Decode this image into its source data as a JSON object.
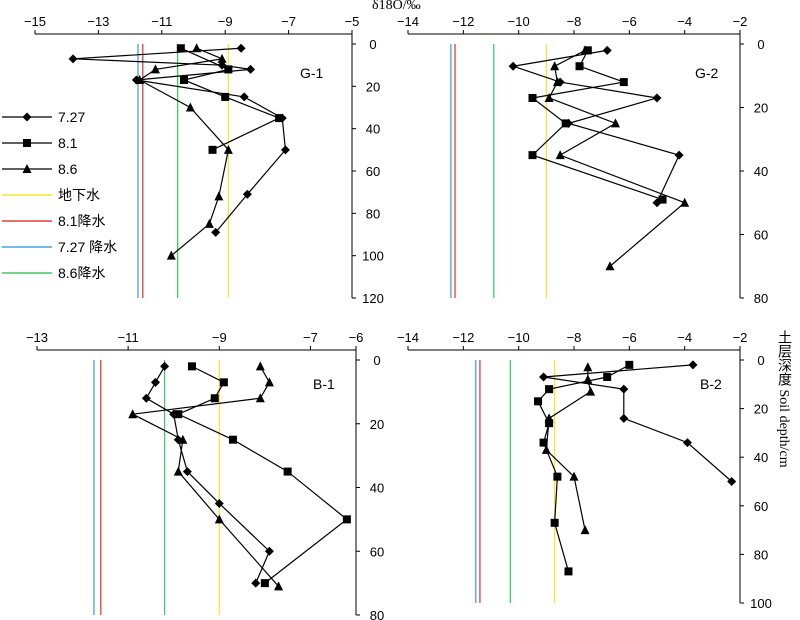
{
  "figure": {
    "top_axis_title": "δ18O/‰",
    "right_axis_title": "土层深度 Soil depth/cm"
  },
  "legend": [
    {
      "label": "7.27",
      "kind": "series",
      "marker": "diamond",
      "color": "#000000"
    },
    {
      "label": "8.1",
      "kind": "series",
      "marker": "square",
      "color": "#000000"
    },
    {
      "label": "8.6",
      "kind": "series",
      "marker": "triangle",
      "color": "#000000"
    },
    {
      "label": "地下水",
      "kind": "line",
      "color": "#f5e63a"
    },
    {
      "label": "8.1降水",
      "kind": "line",
      "color": "#e0403a"
    },
    {
      "label": "7.27 降水",
      "kind": "line",
      "color": "#4aa3e0"
    },
    {
      "label": "8.6降水",
      "kind": "line",
      "color": "#43c96b"
    }
  ],
  "chart_data": [
    {
      "type": "line",
      "panel": "G-1",
      "x_ticks": [
        -15,
        -13,
        -11,
        -9,
        -7,
        -5
      ],
      "y_ticks": [
        0,
        20,
        40,
        60,
        80,
        100,
        120
      ],
      "xlim": [
        -15,
        -5
      ],
      "ylim": [
        0,
        120
      ],
      "reference_lines": {
        "groundwater": -8.9,
        "rain_8_1": -11.6,
        "rain_7_27": -11.75,
        "rain_8_6": -10.5
      },
      "series": [
        {
          "name": "7.27",
          "marker": "diamond",
          "points": [
            [
              -8.5,
              2
            ],
            [
              -13.8,
              7
            ],
            [
              -9.1,
              10
            ],
            [
              -8.2,
              12
            ],
            [
              -11.8,
              17
            ],
            [
              -8.4,
              25
            ],
            [
              -7.2,
              35
            ],
            [
              -7.1,
              50
            ],
            [
              -8.3,
              71
            ],
            [
              -9.3,
              89
            ]
          ]
        },
        {
          "name": "8.1",
          "marker": "square",
          "points": [
            [
              -10.4,
              2
            ],
            [
              -8.9,
              12
            ],
            [
              -10.3,
              17
            ],
            [
              -9.0,
              25
            ],
            [
              -7.3,
              35
            ],
            [
              -9.4,
              50
            ]
          ]
        },
        {
          "name": "8.6",
          "marker": "triangle",
          "points": [
            [
              -9.9,
              2
            ],
            [
              -9.1,
              7
            ],
            [
              -11.2,
              12
            ],
            [
              -11.7,
              17
            ],
            [
              -10.1,
              30
            ],
            [
              -8.9,
              50
            ],
            [
              -9.2,
              72
            ],
            [
              -9.5,
              85
            ],
            [
              -10.7,
              100
            ]
          ]
        }
      ]
    },
    {
      "type": "line",
      "panel": "G-2",
      "x_ticks": [
        -14,
        -12,
        -10,
        -8,
        -6,
        -4,
        -2
      ],
      "y_ticks": [
        0,
        20,
        40,
        60,
        80
      ],
      "xlim": [
        -14,
        -2
      ],
      "ylim": [
        0,
        80
      ],
      "reference_lines": {
        "groundwater": -9.0,
        "rain_8_1": -12.3,
        "rain_7_27": -12.45,
        "rain_8_6": -10.9
      },
      "series": [
        {
          "name": "7.27",
          "marker": "diamond",
          "points": [
            [
              -6.8,
              2
            ],
            [
              -10.2,
              7
            ],
            [
              -8.5,
              12
            ],
            [
              -5.0,
              17
            ],
            [
              -8.2,
              25
            ],
            [
              -4.2,
              35
            ],
            [
              -5.0,
              50
            ]
          ]
        },
        {
          "name": "8.1",
          "marker": "square",
          "points": [
            [
              -7.5,
              2
            ],
            [
              -7.8,
              7
            ],
            [
              -6.2,
              12
            ],
            [
              -9.5,
              17
            ],
            [
              -8.3,
              25
            ],
            [
              -9.5,
              35
            ],
            [
              -4.8,
              49
            ]
          ]
        },
        {
          "name": "8.6",
          "marker": "triangle",
          "points": [
            [
              -7.6,
              2
            ],
            [
              -8.7,
              7
            ],
            [
              -8.6,
              12
            ],
            [
              -8.9,
              17
            ],
            [
              -6.5,
              25
            ],
            [
              -8.5,
              35
            ],
            [
              -4.0,
              50
            ],
            [
              -6.7,
              70
            ]
          ]
        }
      ]
    },
    {
      "type": "line",
      "panel": "B-1",
      "x_ticks": [
        -13,
        -11,
        -9,
        -7,
        -6
      ],
      "y_ticks": [
        0,
        20,
        40,
        60,
        80
      ],
      "xlim": [
        -13,
        -6
      ],
      "ylim": [
        0,
        80
      ],
      "reference_lines": {
        "groundwater": -9.0,
        "rain_8_1": -11.6,
        "rain_7_27": -11.75,
        "rain_8_6": -10.2
      },
      "series": [
        {
          "name": "7.27",
          "marker": "diamond",
          "points": [
            [
              -10.2,
              2
            ],
            [
              -10.4,
              7
            ],
            [
              -10.6,
              12
            ],
            [
              -10.0,
              17
            ],
            [
              -9.9,
              25
            ],
            [
              -9.7,
              35
            ],
            [
              -9.0,
              45
            ],
            [
              -7.9,
              60
            ],
            [
              -8.2,
              70
            ]
          ]
        },
        {
          "name": "8.1",
          "marker": "square",
          "points": [
            [
              -9.6,
              2
            ],
            [
              -8.9,
              7
            ],
            [
              -9.1,
              12
            ],
            [
              -9.9,
              17
            ],
            [
              -8.7,
              25
            ],
            [
              -7.5,
              35
            ],
            [
              -6.2,
              50
            ],
            [
              -8.0,
              70
            ]
          ]
        },
        {
          "name": "8.6",
          "marker": "triangle",
          "points": [
            [
              -8.1,
              2
            ],
            [
              -7.9,
              7
            ],
            [
              -8.1,
              12
            ],
            [
              -10.9,
              17
            ],
            [
              -9.8,
              25
            ],
            [
              -9.9,
              35
            ],
            [
              -9.0,
              50
            ],
            [
              -7.7,
              71
            ]
          ]
        }
      ]
    },
    {
      "type": "line",
      "panel": "B-2",
      "x_ticks": [
        -14,
        -12,
        -10,
        -8,
        -6,
        -4,
        -2
      ],
      "y_ticks": [
        0,
        20,
        40,
        60,
        80,
        100
      ],
      "xlim": [
        -14,
        -2
      ],
      "ylim": [
        0,
        100
      ],
      "reference_lines": {
        "groundwater": -8.7,
        "rain_8_1": -11.4,
        "rain_7_27": -11.55,
        "rain_8_6": -10.3
      },
      "series": [
        {
          "name": "7.27",
          "marker": "diamond",
          "points": [
            [
              -3.7,
              2
            ],
            [
              -9.1,
              7
            ],
            [
              -6.2,
              12
            ],
            [
              -6.2,
              24
            ],
            [
              -3.9,
              34
            ],
            [
              -2.3,
              50
            ]
          ]
        },
        {
          "name": "8.1",
          "marker": "square",
          "points": [
            [
              -6.0,
              2
            ],
            [
              -6.8,
              7
            ],
            [
              -8.9,
              12
            ],
            [
              -9.3,
              17
            ],
            [
              -8.9,
              26
            ],
            [
              -9.1,
              34
            ],
            [
              -8.6,
              48
            ],
            [
              -8.7,
              67
            ],
            [
              -8.2,
              87
            ]
          ]
        },
        {
          "name": "8.6",
          "marker": "triangle",
          "points": [
            [
              -7.5,
              3
            ],
            [
              -7.5,
              8
            ],
            [
              -7.4,
              13
            ],
            [
              -8.9,
              24
            ],
            [
              -9.0,
              37
            ],
            [
              -8.0,
              48
            ],
            [
              -7.6,
              70
            ]
          ]
        }
      ]
    }
  ]
}
